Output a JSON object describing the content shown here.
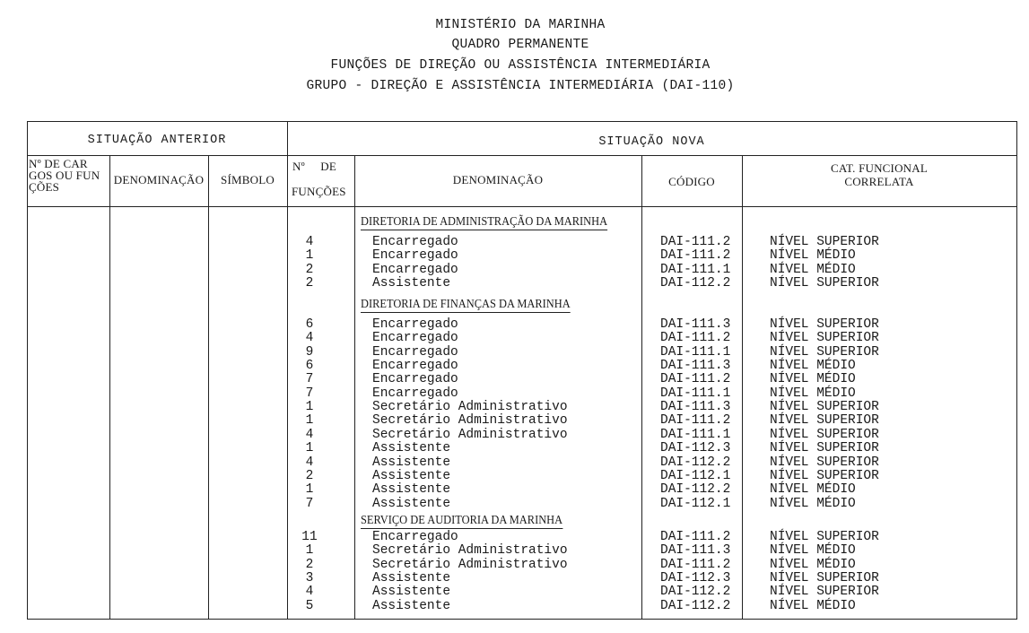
{
  "header": {
    "line1": "MINISTÉRIO DA MARINHA",
    "line2": "QUADRO PERMANENTE",
    "line3": "FUNÇÕES DE DIREÇÃO OU ASSISTÊNCIA INTERMEDIÁRIA",
    "line4": "GRUPO - DIREÇÃO E ASSISTÊNCIA INTERMEDIÁRIA (DAI-110)"
  },
  "table": {
    "situacao_anterior": "SITUAÇÃO ANTERIOR",
    "situacao_nova": "SITUAÇÃO NOVA",
    "columns_anterior": [
      "Nº DE CARGOS OU FUNÇÕES",
      "DENOMINAÇÃO",
      "SÍMBOLO"
    ],
    "col_num_cargos_lines": [
      "Nº DE CAR",
      "GOS OU FUN",
      "ÇÕES"
    ],
    "col_num_funcoes_lines": [
      "Nº DE",
      "FUNÇÕES"
    ],
    "col_denominacao": "DENOMINAÇÃO",
    "col_codigo": "CÓDIGO",
    "col_cat_lines": [
      "CAT. FUNCIONAL",
      "CORRELATA"
    ],
    "sections": [
      {
        "title": "DIRETORIA DE ADMINISTRAÇÃO DA MARINHA",
        "rows": [
          {
            "n": "4",
            "denominacao": "Encarregado",
            "codigo": "DAI-111.2",
            "categoria": "NÍVEL SUPERIOR"
          },
          {
            "n": "1",
            "denominacao": "Encarregado",
            "codigo": "DAI-111.2",
            "categoria": "NÍVEL MÉDIO"
          },
          {
            "n": "2",
            "denominacao": "Encarregado",
            "codigo": "DAI-111.1",
            "categoria": "NÍVEL MÉDIO"
          },
          {
            "n": "2",
            "denominacao": "Assistente",
            "codigo": "DAI-112.2",
            "categoria": "NÍVEL SUPERIOR"
          }
        ]
      },
      {
        "title": "DIRETORIA DE FINANÇAS DA MARINHA",
        "rows": [
          {
            "n": "6",
            "denominacao": "Encarregado",
            "codigo": "DAI-111.3",
            "categoria": "NÍVEL SUPERIOR"
          },
          {
            "n": "4",
            "denominacao": "Encarregado",
            "codigo": "DAI-111.2",
            "categoria": "NÍVEL SUPERIOR"
          },
          {
            "n": "9",
            "denominacao": "Encarregado",
            "codigo": "DAI-111.1",
            "categoria": "NÍVEL SUPERIOR"
          },
          {
            "n": "6",
            "denominacao": "Encarregado",
            "codigo": "DAI-111.3",
            "categoria": "NÍVEL MÉDIO"
          },
          {
            "n": "7",
            "denominacao": "Encarregado",
            "codigo": "DAI-111.2",
            "categoria": "NÍVEL MÉDIO"
          },
          {
            "n": "7",
            "denominacao": "Encarregado",
            "codigo": "DAI-111.1",
            "categoria": "NÍVEL MÉDIO"
          },
          {
            "n": "1",
            "denominacao": "Secretário Administrativo",
            "codigo": "DAI-111.3",
            "categoria": "NÍVEL SUPERIOR"
          },
          {
            "n": "1",
            "denominacao": "Secretário Administrativo",
            "codigo": "DAI-111.2",
            "categoria": "NÍVEL SUPERIOR"
          },
          {
            "n": "4",
            "denominacao": "Secretário Administrativo",
            "codigo": "DAI-111.1",
            "categoria": "NÍVEL SUPERIOR"
          },
          {
            "n": "1",
            "denominacao": "Assistente",
            "codigo": "DAI-112.3",
            "categoria": "NÍVEL SUPERIOR"
          },
          {
            "n": "4",
            "denominacao": "Assistente",
            "codigo": "DAI-112.2",
            "categoria": "NÍVEL SUPERIOR"
          },
          {
            "n": "2",
            "denominacao": "Assistente",
            "codigo": "DAI-112.1",
            "categoria": "NÍVEL SUPERIOR"
          },
          {
            "n": "1",
            "denominacao": "Assistente",
            "codigo": "DAI-112.2",
            "categoria": "NÍVEL MÉDIO"
          },
          {
            "n": "7",
            "denominacao": "Assistente",
            "codigo": "DAI-112.1",
            "categoria": "NÍVEL MÉDIO"
          }
        ]
      },
      {
        "title": "SERVIÇO DE AUDITORIA DA MARINHA",
        "rows": [
          {
            "n": "11",
            "denominacao": "Encarregado",
            "codigo": "DAI-111.2",
            "categoria": "NÍVEL SUPERIOR"
          },
          {
            "n": "1",
            "denominacao": "Secretário Administrativo",
            "codigo": "DAI-111.3",
            "categoria": "NÍVEL MÉDIO"
          },
          {
            "n": "2",
            "denominacao": "Secretário Administrativo",
            "codigo": "DAI-111.2",
            "categoria": "NÍVEL MÉDIO"
          },
          {
            "n": "3",
            "denominacao": "Assistente",
            "codigo": "DAI-112.3",
            "categoria": "NÍVEL SUPERIOR"
          },
          {
            "n": "4",
            "denominacao": "Assistente",
            "codigo": "DAI-112.2",
            "categoria": "NÍVEL SUPERIOR"
          },
          {
            "n": "5",
            "denominacao": "Assistente",
            "codigo": "DAI-112.2",
            "categoria": "NÍVEL MÉDIO"
          }
        ]
      }
    ]
  }
}
